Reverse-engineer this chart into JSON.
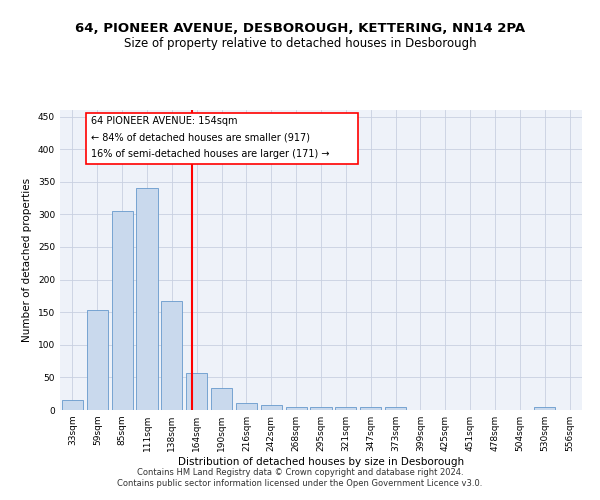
{
  "title": "64, PIONEER AVENUE, DESBOROUGH, KETTERING, NN14 2PA",
  "subtitle": "Size of property relative to detached houses in Desborough",
  "xlabel": "Distribution of detached houses by size in Desborough",
  "ylabel": "Number of detached properties",
  "categories": [
    "33sqm",
    "59sqm",
    "85sqm",
    "111sqm",
    "138sqm",
    "164sqm",
    "190sqm",
    "216sqm",
    "242sqm",
    "268sqm",
    "295sqm",
    "321sqm",
    "347sqm",
    "373sqm",
    "399sqm",
    "425sqm",
    "451sqm",
    "478sqm",
    "504sqm",
    "530sqm",
    "556sqm"
  ],
  "values": [
    16,
    153,
    305,
    340,
    167,
    56,
    34,
    10,
    8,
    5,
    4,
    4,
    5,
    5,
    0,
    0,
    0,
    0,
    0,
    5,
    0
  ],
  "bar_color": "#c9d9ed",
  "bar_edge_color": "#7aaber",
  "vline_color": "red",
  "annotation_line1": "64 PIONEER AVENUE: 154sqm",
  "annotation_line2": "← 84% of detached houses are smaller (917)",
  "annotation_line3": "16% of semi-detached houses are larger (171) →",
  "annotation_box_color": "white",
  "annotation_box_edge_color": "red",
  "ylim": [
    0,
    460
  ],
  "yticks": [
    0,
    50,
    100,
    150,
    200,
    250,
    300,
    350,
    400,
    450
  ],
  "footer_text": "Contains HM Land Registry data © Crown copyright and database right 2024.\nContains public sector information licensed under the Open Government Licence v3.0.",
  "bg_color": "#eef2f9",
  "grid_color": "#c8d0e0",
  "title_fontsize": 9.5,
  "subtitle_fontsize": 8.5,
  "axis_label_fontsize": 7.5,
  "tick_fontsize": 6.5,
  "annotation_fontsize": 7,
  "footer_fontsize": 6
}
